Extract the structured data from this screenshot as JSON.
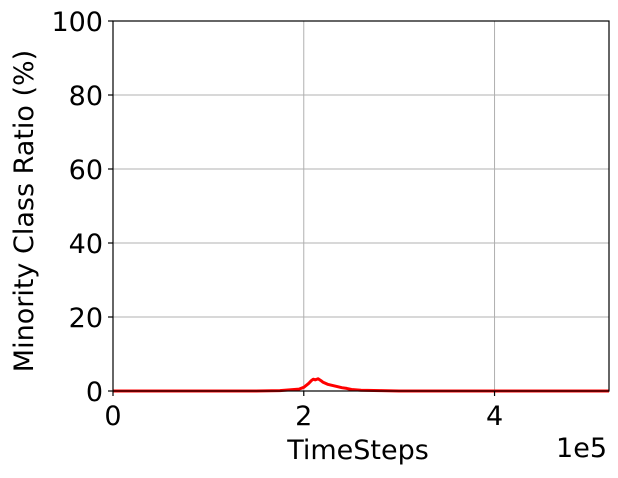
{
  "chart_data": {
    "type": "line",
    "title": "",
    "xlabel": "TimeSteps",
    "ylabel": "Minority Class Ratio (%)",
    "x_offset_label": "1e5",
    "xlim": [
      0,
      5.2
    ],
    "ylim": [
      0,
      100
    ],
    "x_scale_note": "x values in units of 1e5",
    "xticks": [
      0,
      2,
      4
    ],
    "xtick_labels": [
      "0",
      "2",
      "4"
    ],
    "yticks": [
      0,
      20,
      40,
      60,
      80,
      100
    ],
    "ytick_labels": [
      "0",
      "20",
      "40",
      "60",
      "80",
      "100"
    ],
    "grid": true,
    "series": [
      {
        "color": "#ff0000",
        "x": [
          0,
          0.5,
          1.0,
          1.5,
          1.75,
          1.85,
          1.95,
          2.0,
          2.05,
          2.08,
          2.1,
          2.12,
          2.15,
          2.18,
          2.2,
          2.25,
          2.3,
          2.35,
          2.4,
          2.45,
          2.5,
          2.6,
          2.8,
          3.0,
          3.5,
          4.0,
          4.5,
          5.0,
          5.2
        ],
        "y": [
          0,
          0,
          0,
          0,
          0.1,
          0.3,
          0.5,
          1.0,
          2.0,
          2.8,
          3.2,
          3.0,
          3.3,
          2.8,
          2.4,
          1.8,
          1.5,
          1.2,
          0.9,
          0.7,
          0.4,
          0.2,
          0.1,
          0,
          0,
          0,
          0,
          0,
          0
        ]
      }
    ]
  }
}
